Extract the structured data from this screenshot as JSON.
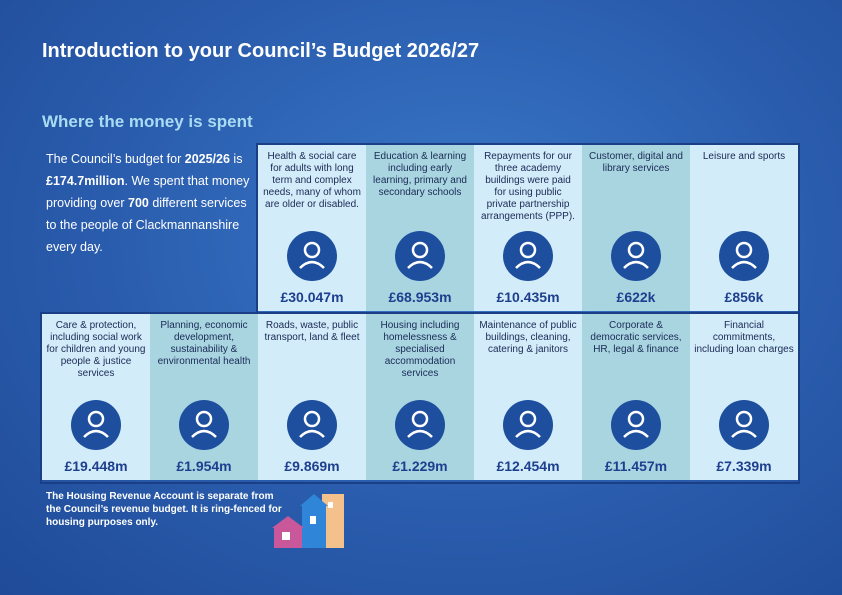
{
  "header": {
    "title": "Introduction to your Council’s Budget 2026/27",
    "subtitle": "Where the money is spent"
  },
  "intro": [
    "The Council’s budget for ",
    "2025/26",
    " is ",
    "£174.7million",
    ". We spent that money providing over ",
    "700",
    " different services to the people of Clackmannanshire every day."
  ],
  "services": [
    {
      "label": "Health & social care for adults with long term and complex needs, many of whom are older or disabled.",
      "amount": "£30.047m"
    },
    {
      "label": "Education & learning including early learning, primary and secondary schools",
      "amount": "£68.953m"
    },
    {
      "label": "Repayments for our three academy buildings were paid for using public private partnership arrangements (PPP).",
      "amount": "£10.435m"
    },
    {
      "label": "Customer, digital and library services",
      "amount": "£622k"
    },
    {
      "label": "Leisure and sports",
      "amount": "£856k"
    },
    {
      "label": "Care & protection, including social work for children and young people & justice services",
      "amount": "£19.448m"
    },
    {
      "label": "Planning, economic development, sustainability & environmental health",
      "amount": "£1.954m"
    },
    {
      "label": "Roads, waste, public transport, land & fleet",
      "amount": "£9.869m"
    },
    {
      "label": "Housing including homelessness & specialised accommodation services",
      "amount": "£1.229m"
    },
    {
      "label": "Maintenance of public buildings, cleaning, catering & janitors",
      "amount": "£12.454m"
    },
    {
      "label": "Corporate & democratic services, HR, legal & finance",
      "amount": "£11.457m"
    },
    {
      "label": "Financial commitments, including loan charges",
      "amount": "£7.339m"
    }
  ],
  "note": "The Housing Revenue Account is separate from the Council’s revenue budget. It is ring-fenced for housing purposes only."
}
